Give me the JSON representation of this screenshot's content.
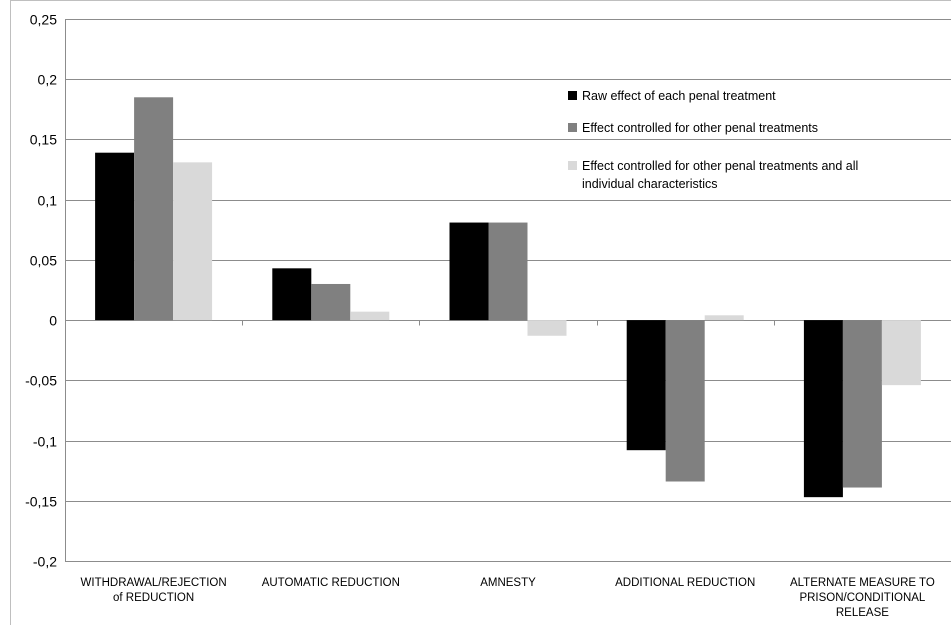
{
  "chart_data": {
    "type": "bar",
    "categories": [
      [
        "WITHDRAWAL/REJECTION",
        "of REDUCTION"
      ],
      [
        "AUTOMATIC REDUCTION"
      ],
      [
        "AMNESTY"
      ],
      [
        "ADDITIONAL REDUCTION"
      ],
      [
        "ALTERNATE MEASURE TO",
        "PRISON/CONDITIONAL",
        "RELEASE"
      ]
    ],
    "series": [
      {
        "name": "Raw effect of each penal treatment",
        "color": "#000000",
        "values": [
          0.139,
          0.043,
          0.081,
          -0.108,
          -0.147
        ]
      },
      {
        "name": "Effect controlled for other penal treatments",
        "color": "#808080",
        "values": [
          0.185,
          0.03,
          0.081,
          -0.134,
          -0.139
        ]
      },
      {
        "name": "Effect controlled for other penal treatments and all individual characteristics",
        "color": "#d9d9d9",
        "values": [
          0.131,
          0.007,
          -0.013,
          0.004,
          -0.054
        ]
      }
    ],
    "legend_lines": [
      [
        "Raw effect of each penal treatment"
      ],
      [
        "Effect controlled for other penal treatments"
      ],
      [
        "Effect controlled for other penal treatments and all",
        "individual characteristics"
      ]
    ],
    "yticks": [
      0.25,
      0.2,
      0.15,
      0.1,
      0.05,
      0,
      -0.05,
      -0.1,
      -0.15,
      -0.2
    ],
    "ytick_labels": [
      "0,25",
      "0,2",
      "0,15",
      "0,1",
      "0,05",
      "0",
      "-0,05",
      "-0,1",
      "-0,15",
      "-0,2"
    ],
    "ylim": [
      -0.2,
      0.25
    ],
    "grid": true,
    "legend_position": "top-right",
    "title": "",
    "xlabel": "",
    "ylabel": ""
  }
}
